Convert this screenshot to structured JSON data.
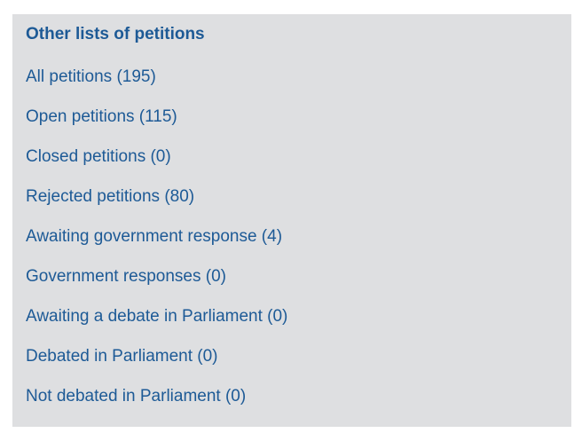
{
  "panel": {
    "title": "Other lists of petitions",
    "links": [
      {
        "label": "All petitions (195)"
      },
      {
        "label": "Open petitions (115)"
      },
      {
        "label": "Closed petitions (0)"
      },
      {
        "label": "Rejected petitions (80)"
      },
      {
        "label": "Awaiting government response (4)"
      },
      {
        "label": "Government responses (0)"
      },
      {
        "label": "Awaiting a debate in Parliament (0)"
      },
      {
        "label": "Debated in Parliament (0)"
      },
      {
        "label": "Not debated in Parliament (0)"
      }
    ]
  },
  "colors": {
    "panel_background": "#dedfe1",
    "link": "#1d5a96"
  }
}
